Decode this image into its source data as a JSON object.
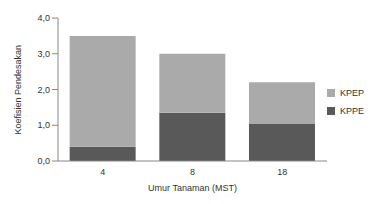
{
  "chart_data": {
    "type": "bar",
    "stacked": true,
    "categories": [
      "4",
      "8",
      "18"
    ],
    "series": [
      {
        "name": "KPPE",
        "color": "#595959",
        "values": [
          0.4,
          1.35,
          1.05
        ]
      },
      {
        "name": "KPEP",
        "color": "#aaaaaa",
        "values": [
          3.1,
          1.65,
          1.15
        ]
      }
    ],
    "x_label": "Umur Tanaman (MST)",
    "y_label": "Koefisien Pendesakan",
    "ylim": [
      0,
      4
    ],
    "yticks": [
      {
        "value": 0,
        "label": "0,0"
      },
      {
        "value": 1,
        "label": "1,0"
      },
      {
        "value": 2,
        "label": "2,0"
      },
      {
        "value": 3,
        "label": "3,0"
      },
      {
        "value": 4,
        "label": "4,0"
      }
    ],
    "legend": "right",
    "grid": false
  }
}
